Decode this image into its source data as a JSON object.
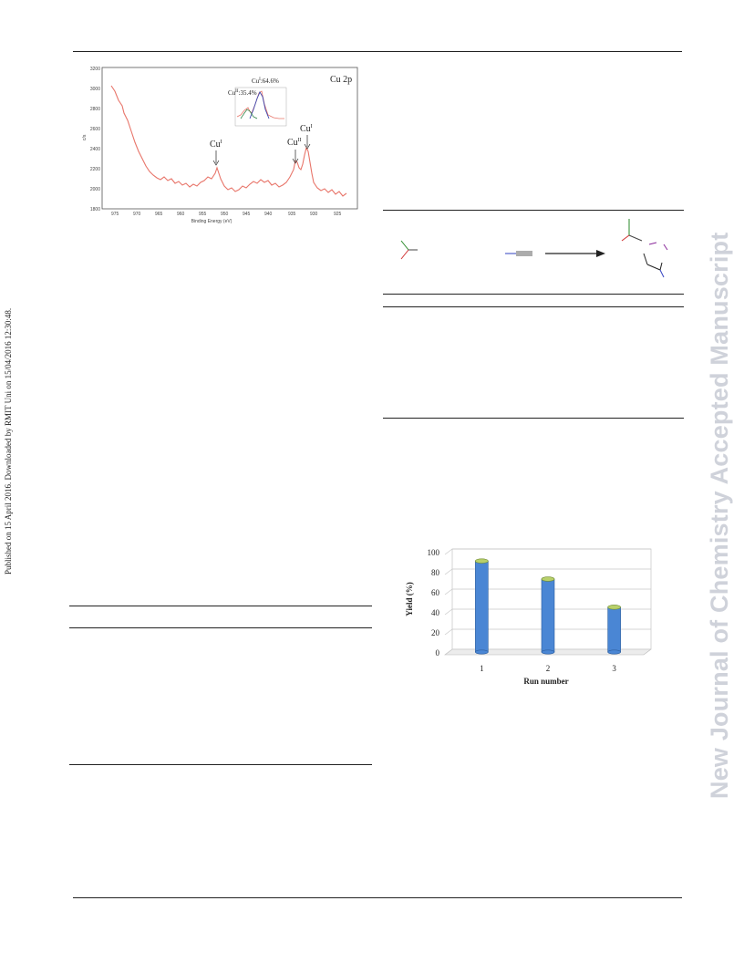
{
  "watermark": {
    "left_text": "Published on 15 April 2016. Downloaded by RMIT Uni on 15/04/2016 12:30:48.",
    "right_text": "New Journal of Chemistry Accepted Manuscript"
  },
  "colors": {
    "xps_line": "#e8756a",
    "bar_fill": "#4a86d4",
    "bar_top": "#b8d06a",
    "watermark": "#cfd2da"
  },
  "xps_figure": {
    "panel_label": "Cu 2p",
    "peak_labels": [
      "Cu",
      "Cu",
      "Cu"
    ],
    "peak_superscripts": [
      "I",
      "II",
      "I"
    ],
    "inset_labels": [
      "Cu",
      "Cu"
    ],
    "inset_superscripts": [
      "I",
      "II"
    ],
    "inset_percents": [
      ":64.6%",
      ":35.4%"
    ],
    "ylabel": "c/s",
    "xlabel": "Binding Energy (eV)"
  },
  "chart_data": {
    "type": "bar",
    "categories": [
      "1",
      "2",
      "3"
    ],
    "values": [
      88,
      70,
      42
    ],
    "xlabel": "Run number",
    "ylabel": "Yield (%)",
    "ylim": [
      0,
      100
    ],
    "yticks": [
      0,
      20,
      40,
      60,
      80,
      100
    ],
    "grid": true
  }
}
